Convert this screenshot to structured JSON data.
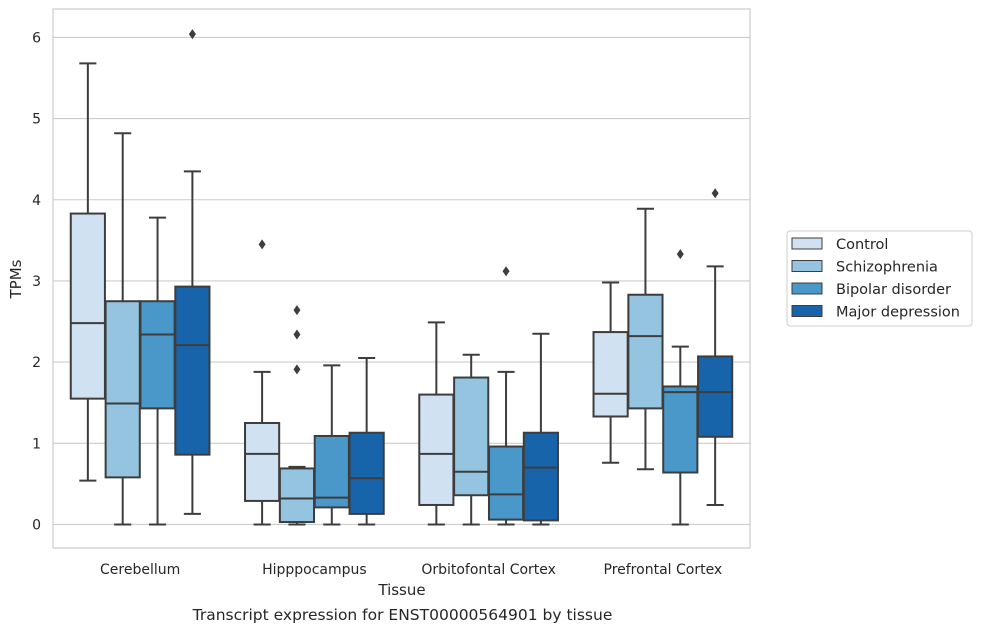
{
  "chart_data": {
    "type": "box",
    "title": "",
    "xlabel": "Tissue",
    "ylabel": "TPMs",
    "ylim": [
      -0.29,
      6.35
    ],
    "yticks": [
      "0",
      "1",
      "2",
      "3",
      "4",
      "5",
      "6"
    ],
    "grid": true,
    "legend_position": "right",
    "categories": [
      "Cerebellum",
      "Hipppocampus",
      "Orbitofontal Cortex",
      "Prefrontal Cortex"
    ],
    "series": [
      {
        "name": "Control",
        "color": "#d0e1f2",
        "boxes": [
          {
            "whislo": 0.54,
            "q1": 1.55,
            "med": 2.48,
            "q3": 3.83,
            "whishi": 5.68,
            "fliers": []
          },
          {
            "whislo": 0.0,
            "q1": 0.29,
            "med": 0.87,
            "q3": 1.25,
            "whishi": 1.88,
            "fliers": [
              3.45
            ]
          },
          {
            "whislo": 0.0,
            "q1": 0.24,
            "med": 0.87,
            "q3": 1.6,
            "whishi": 2.49,
            "fliers": []
          },
          {
            "whislo": 0.76,
            "q1": 1.33,
            "med": 1.61,
            "q3": 2.37,
            "whishi": 2.98,
            "fliers": []
          }
        ]
      },
      {
        "name": "Schizophrenia",
        "color": "#94c4df",
        "boxes": [
          {
            "whislo": 0.0,
            "q1": 0.58,
            "med": 1.49,
            "q3": 2.75,
            "whishi": 4.82,
            "fliers": []
          },
          {
            "whislo": 0.0,
            "q1": 0.03,
            "med": 0.32,
            "q3": 0.69,
            "whishi": 0.71,
            "fliers": [
              1.91,
              2.34,
              2.64
            ]
          },
          {
            "whislo": 0.0,
            "q1": 0.36,
            "med": 0.65,
            "q3": 1.81,
            "whishi": 2.09,
            "fliers": []
          },
          {
            "whislo": 0.68,
            "q1": 1.43,
            "med": 2.32,
            "q3": 2.83,
            "whishi": 3.89,
            "fliers": []
          }
        ]
      },
      {
        "name": "Bipolar disorder",
        "color": "#4a98c9",
        "boxes": [
          {
            "whislo": 0.0,
            "q1": 1.43,
            "med": 2.34,
            "q3": 2.75,
            "whishi": 3.78,
            "fliers": []
          },
          {
            "whislo": 0.0,
            "q1": 0.21,
            "med": 0.33,
            "q3": 1.09,
            "whishi": 1.96,
            "fliers": []
          },
          {
            "whislo": 0.0,
            "q1": 0.06,
            "med": 0.37,
            "q3": 0.96,
            "whishi": 1.88,
            "fliers": [
              3.12
            ]
          },
          {
            "whislo": 0.0,
            "q1": 0.64,
            "med": 1.63,
            "q3": 1.7,
            "whishi": 2.19,
            "fliers": [
              3.33
            ]
          }
        ]
      },
      {
        "name": "Major depression",
        "color": "#1764ab",
        "boxes": [
          {
            "whislo": 0.13,
            "q1": 0.86,
            "med": 2.21,
            "q3": 2.93,
            "whishi": 4.35,
            "fliers": [
              6.04
            ]
          },
          {
            "whislo": 0.0,
            "q1": 0.13,
            "med": 0.57,
            "q3": 1.13,
            "whishi": 2.05,
            "fliers": []
          },
          {
            "whislo": 0.0,
            "q1": 0.05,
            "med": 0.7,
            "q3": 1.13,
            "whishi": 2.35,
            "fliers": []
          },
          {
            "whislo": 0.24,
            "q1": 1.08,
            "med": 1.63,
            "q3": 2.07,
            "whishi": 3.18,
            "fliers": [
              4.08
            ]
          }
        ]
      }
    ],
    "caption": "Transcript expression for ENST00000564901 by tissue"
  }
}
